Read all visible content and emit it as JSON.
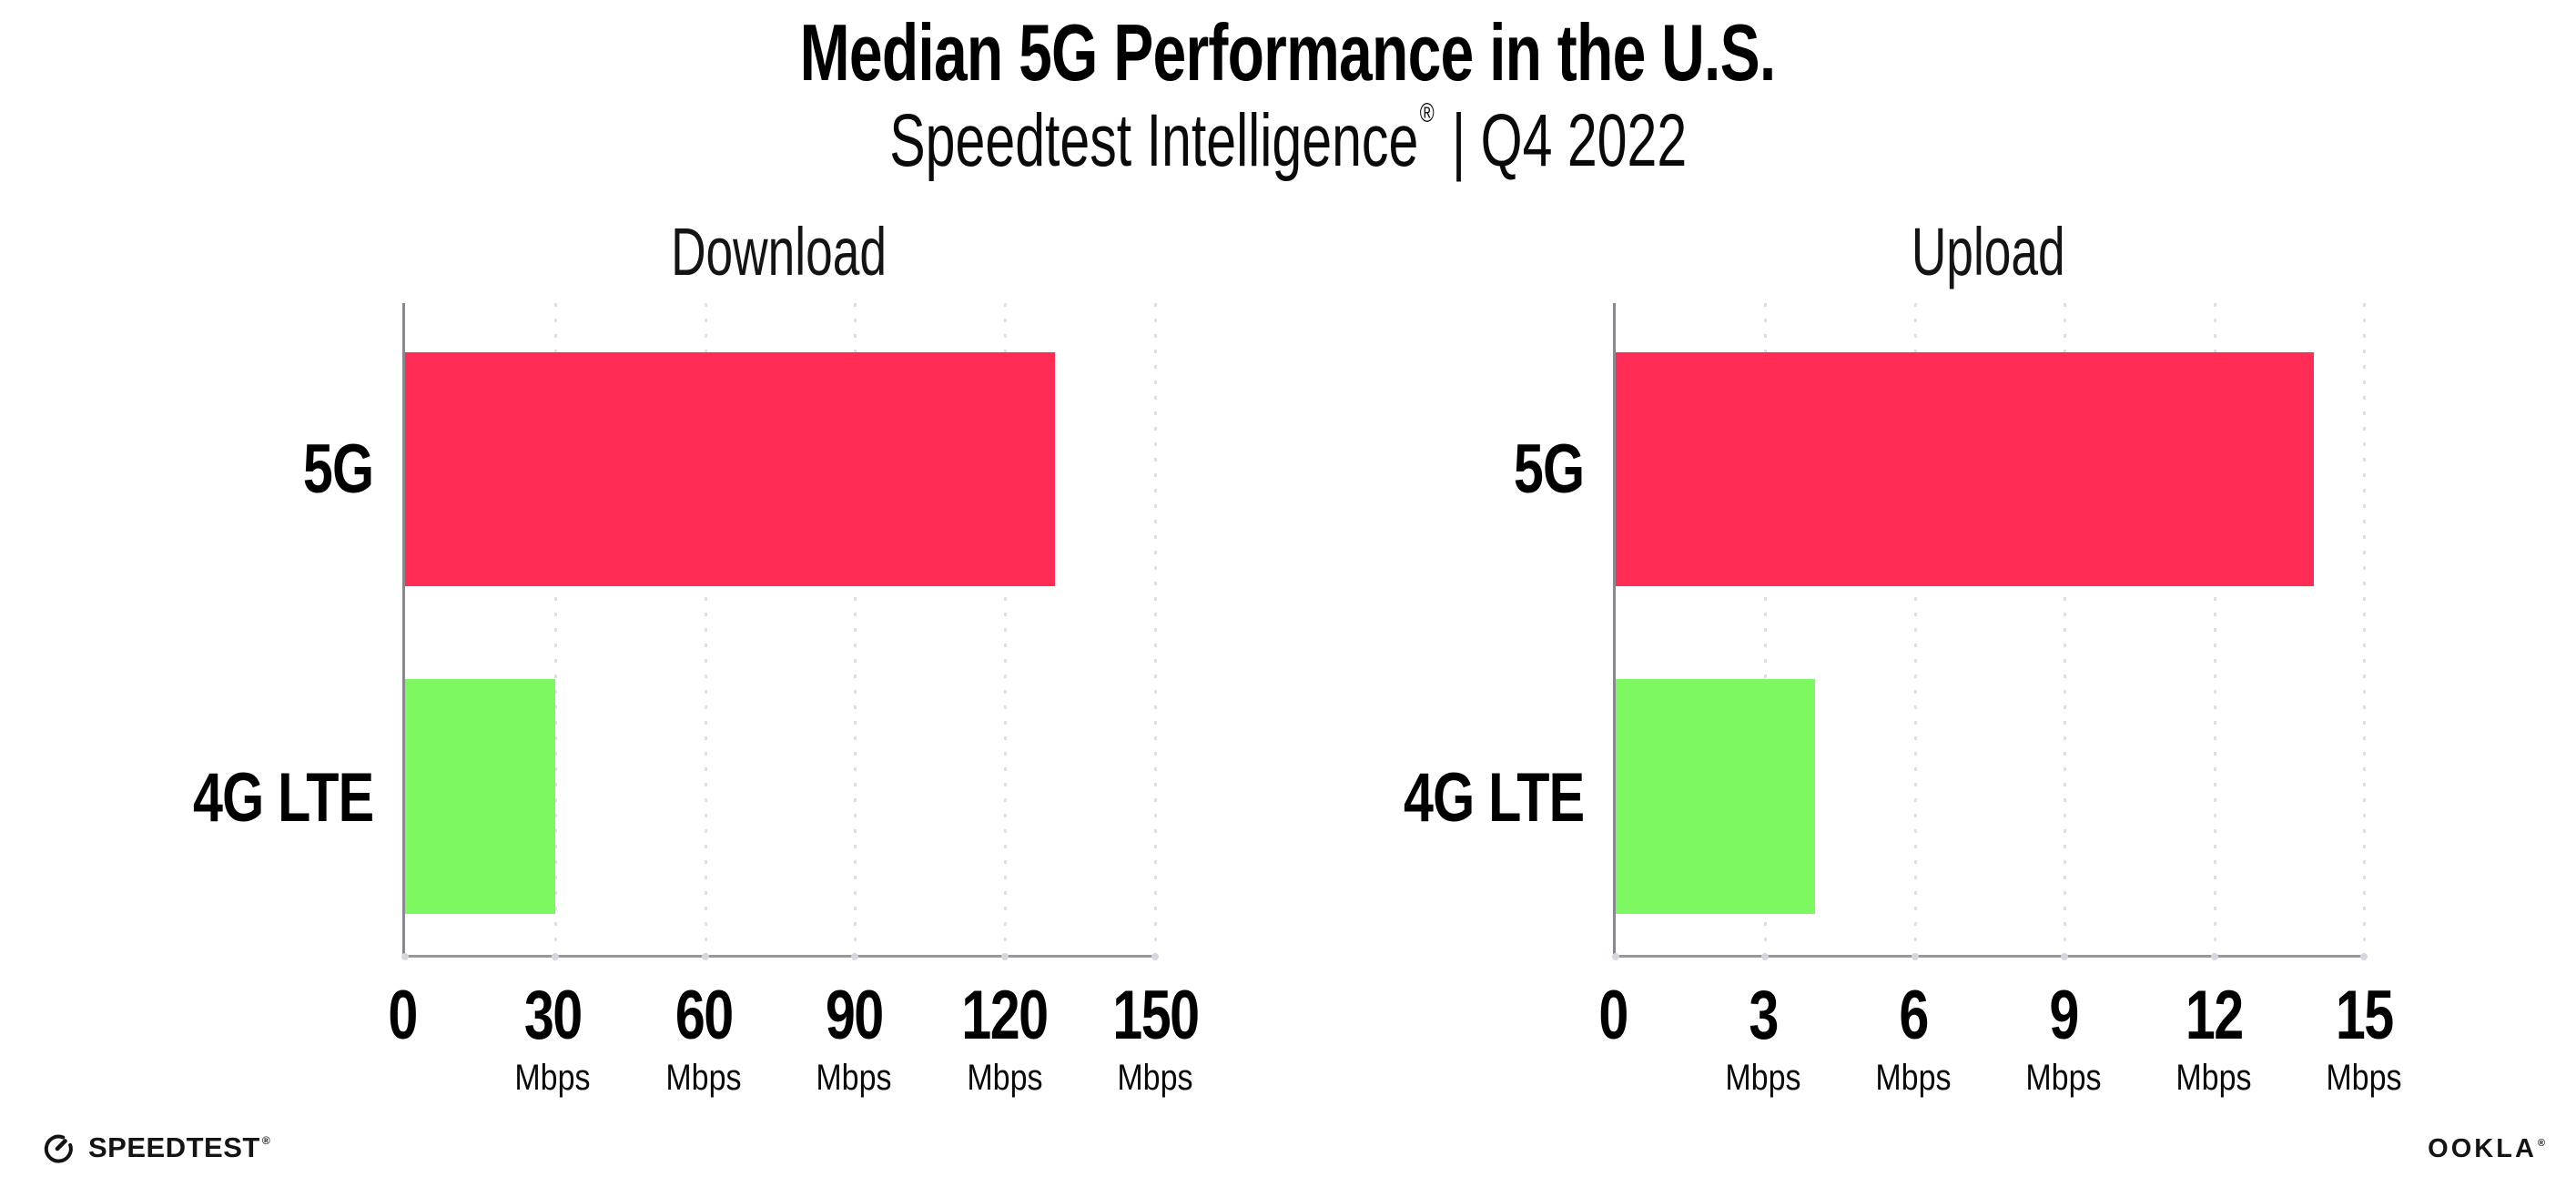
{
  "header": {
    "title": "Median 5G Performance in the U.S.",
    "subtitle_brand": "Speedtest Intelligence",
    "subtitle_reg": "®",
    "subtitle_rest": " | Q4 2022"
  },
  "chart_data": [
    {
      "type": "bar",
      "orientation": "horizontal",
      "title": "Download",
      "categories": [
        "5G",
        "4G LTE"
      ],
      "values": [
        130,
        30
      ],
      "unit": "Mbps",
      "xlim": [
        0,
        150
      ],
      "xticks": [
        0,
        30,
        60,
        90,
        120,
        150
      ],
      "bar_colors": [
        "#ff2d55",
        "#7df860"
      ],
      "grid": "vertical-dotted",
      "legend_position": "none"
    },
    {
      "type": "bar",
      "orientation": "horizontal",
      "title": "Upload",
      "categories": [
        "5G",
        "4G LTE"
      ],
      "values": [
        14,
        4
      ],
      "unit": "Mbps",
      "xlim": [
        0,
        15
      ],
      "xticks": [
        0,
        3,
        6,
        9,
        12,
        15
      ],
      "bar_colors": [
        "#ff2d55",
        "#7df860"
      ],
      "grid": "vertical-dotted",
      "legend_position": "none"
    }
  ],
  "colors": {
    "bar_5g": "#ff2d55",
    "bar_4g_lte": "#7df860",
    "axis": "#90909a",
    "gridline": "#dfdfe7"
  },
  "footer": {
    "speedtest_label": "SPEEDTEST",
    "speedtest_mark": "®",
    "ookla_label": "OOKLA",
    "ookla_mark": "®"
  }
}
